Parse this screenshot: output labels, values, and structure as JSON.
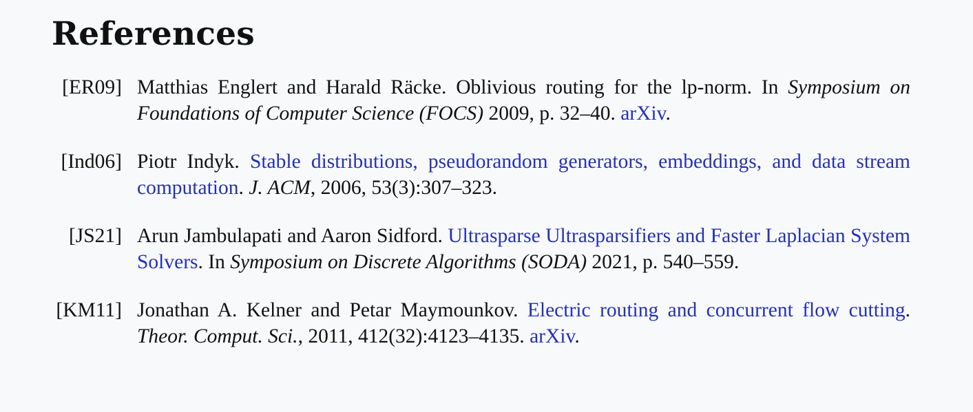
{
  "section": {
    "title": "References"
  },
  "refs": [
    {
      "key": "[ER09]",
      "authors": "Matthias Englert and Harald Räcke.",
      "title": "Oblivious routing for the lp-norm.",
      "in": "In",
      "venue": "Symposium on Foundations of Computer Science (FOCS)",
      "details": "2009, p. 32–40.",
      "link": "arXiv",
      "end": "."
    },
    {
      "key": "[Ind06]",
      "authors": "Piotr Indyk.",
      "title_link": "Stable distributions, pseudorandom generators, embeddings, and data stream computation",
      "sep": ".",
      "venue": "J. ACM",
      "details": ", 2006, 53(3):307–323."
    },
    {
      "key": "[JS21]",
      "authors": "Arun Jambulapati and Aaron Sidford.",
      "title_link": "Ultrasparse Ultrasparsifiers and Faster Laplacian System Solvers",
      "sep": ". In",
      "venue": "Symposium on Discrete Algorithms (SODA)",
      "details": "2021, p. 540–559."
    },
    {
      "key": "[KM11]",
      "authors": "Jonathan A. Kelner and Petar Maymounkov.",
      "title_link": "Electric routing and concurrent flow cutting",
      "sep": ".",
      "venue": "Theor. Comput. Sci.",
      "details": ", 2011, 412(32):4123–4135.",
      "link": "arXiv",
      "end": "."
    }
  ]
}
